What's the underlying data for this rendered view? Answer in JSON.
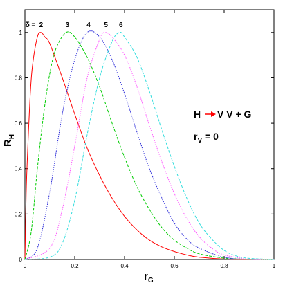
{
  "chart_data": {
    "type": "line",
    "xlabel_main": "r",
    "xlabel_sub": "G",
    "ylabel_main": "R",
    "ylabel_sub": "H",
    "xlim": [
      0,
      1
    ],
    "ylim": [
      0,
      1.1
    ],
    "x_ticks": [
      0,
      0.2,
      0.4,
      0.6,
      0.8,
      1
    ],
    "x_tick_labels": [
      "0",
      "0.2",
      "0.4",
      "0.6",
      "0.8",
      "1"
    ],
    "y_ticks": [
      0,
      0.2,
      0.4,
      0.6,
      0.8,
      1
    ],
    "y_tick_labels": [
      "0",
      "0.2",
      "0.4",
      "0.6",
      "0.8",
      "1"
    ],
    "grid": false,
    "legend_prefix": "δ =",
    "series": [
      {
        "label": "2",
        "color": "#ff0000",
        "dash": "solid",
        "x": [
          0,
          0.005,
          0.01,
          0.02,
          0.03,
          0.05,
          0.065,
          0.08,
          0.1,
          0.15,
          0.2,
          0.25,
          0.3,
          0.35,
          0.4,
          0.45,
          0.5,
          0.55,
          0.6,
          0.65,
          0.7,
          0.8,
          1
        ],
        "y": [
          0,
          0.29,
          0.45,
          0.7,
          0.85,
          0.98,
          1.0,
          0.98,
          0.95,
          0.8,
          0.64,
          0.49,
          0.37,
          0.27,
          0.19,
          0.13,
          0.085,
          0.055,
          0.035,
          0.02,
          0.01,
          0.002,
          0
        ]
      },
      {
        "label": "3",
        "color": "#00cc00",
        "dash": "dashed",
        "x": [
          0,
          0.025,
          0.05,
          0.075,
          0.1,
          0.125,
          0.165,
          0.2,
          0.25,
          0.3,
          0.35,
          0.4,
          0.45,
          0.5,
          0.55,
          0.6,
          0.65,
          0.7,
          0.8,
          0.9,
          1
        ],
        "y": [
          0,
          0.12,
          0.4,
          0.64,
          0.82,
          0.93,
          1.0,
          0.98,
          0.89,
          0.76,
          0.6,
          0.45,
          0.32,
          0.22,
          0.14,
          0.085,
          0.05,
          0.025,
          0.006,
          0.001,
          0
        ]
      },
      {
        "label": "4",
        "color": "#2a2ad8",
        "dash": "dotted",
        "x": [
          0,
          0.05,
          0.1,
          0.15,
          0.2,
          0.25,
          0.3,
          0.35,
          0.4,
          0.45,
          0.5,
          0.55,
          0.6,
          0.65,
          0.7,
          0.8,
          0.9,
          1
        ],
        "y": [
          0,
          0.05,
          0.3,
          0.64,
          0.88,
          1.0,
          0.98,
          0.88,
          0.73,
          0.56,
          0.4,
          0.27,
          0.16,
          0.09,
          0.05,
          0.01,
          0.001,
          0
        ]
      },
      {
        "label": "5",
        "color": "#ff55ff",
        "dash": "dotted",
        "x": [
          0,
          0.1,
          0.15,
          0.2,
          0.25,
          0.3,
          0.32,
          0.35,
          0.4,
          0.45,
          0.5,
          0.55,
          0.6,
          0.65,
          0.7,
          0.75,
          0.8,
          0.9,
          1
        ],
        "y": [
          0,
          0.05,
          0.22,
          0.5,
          0.8,
          0.97,
          1.0,
          0.98,
          0.9,
          0.76,
          0.59,
          0.43,
          0.29,
          0.18,
          0.1,
          0.05,
          0.02,
          0.002,
          0
        ]
      },
      {
        "label": "6",
        "color": "#33dddd",
        "dash": "dashed",
        "x": [
          0,
          0.1,
          0.15,
          0.2,
          0.25,
          0.3,
          0.35,
          0.38,
          0.4,
          0.45,
          0.5,
          0.55,
          0.6,
          0.65,
          0.7,
          0.75,
          0.8,
          0.85,
          0.9,
          1
        ],
        "y": [
          0,
          0.01,
          0.07,
          0.26,
          0.55,
          0.8,
          0.96,
          1.0,
          0.98,
          0.89,
          0.74,
          0.57,
          0.41,
          0.27,
          0.16,
          0.09,
          0.04,
          0.015,
          0.005,
          0
        ]
      }
    ],
    "annotation_process": {
      "left": "H",
      "right": "V V + G",
      "arrow_color": "#ff0000"
    },
    "annotation_param": {
      "main": "r",
      "sub": "V",
      "rest": " = 0"
    }
  }
}
